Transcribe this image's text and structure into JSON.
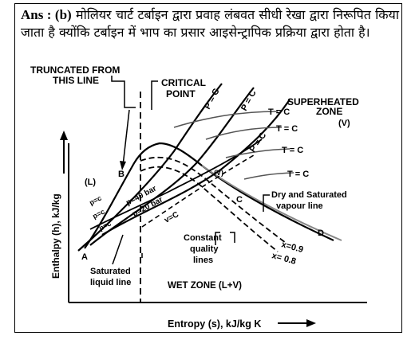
{
  "answer": {
    "prefix": "Ans : (b)",
    "text": "मोलियर चार्ट टर्बाइन द्वारा प्रवाह लंबवत सीधी रेखा द्वारा निरूपित किया जाता है क्योंकि टर्बाइन में भाप का प्रसार आइसेन्ट्रापिक प्रक्रिया द्वारा होता है।"
  },
  "diagram": {
    "truncated_label_1": "TRUNCATED FROM",
    "truncated_label_2": "THIS LINE",
    "critical_label_1": "CRITICAL",
    "critical_label_2": "POINT",
    "superheated_1": "SUPERHEATED",
    "superheated_2": "ZONE",
    "superheated_3": "(V)",
    "liquid_zone": "(L)",
    "p_c_1": "P = C",
    "p_c_2": "P = C",
    "p_c_3": "P = C",
    "t_c_1": "T = C",
    "t_c_2": "T = C",
    "t_c_3": "T = C",
    "t_c_4": "T = C",
    "p_c_left_1": "p=c",
    "p_c_left_2": "p=c",
    "p_c_left_3": "p=c",
    "p40": "p=40 bar",
    "p20": "p=20 bar",
    "v_c": "v=C",
    "l_v": "(V)",
    "point_a": "A",
    "point_b": "B",
    "point_c": "C",
    "point_d": "D",
    "dry_sat_1": "Dry and Saturated",
    "dry_sat_2": "vapour line",
    "const_q_1": "Constant",
    "const_q_2": "quality",
    "const_q_3": "lines",
    "x09": "x=0.9",
    "x08": "x= 0.8",
    "sat_liq_1": "Saturated",
    "sat_liq_2": "liquid line",
    "wet_zone": "WET ZONE (L+V)",
    "y_axis": "Enthalpy (h), kJ/kg",
    "x_axis": "Entropy (s), kJ/kg K"
  }
}
